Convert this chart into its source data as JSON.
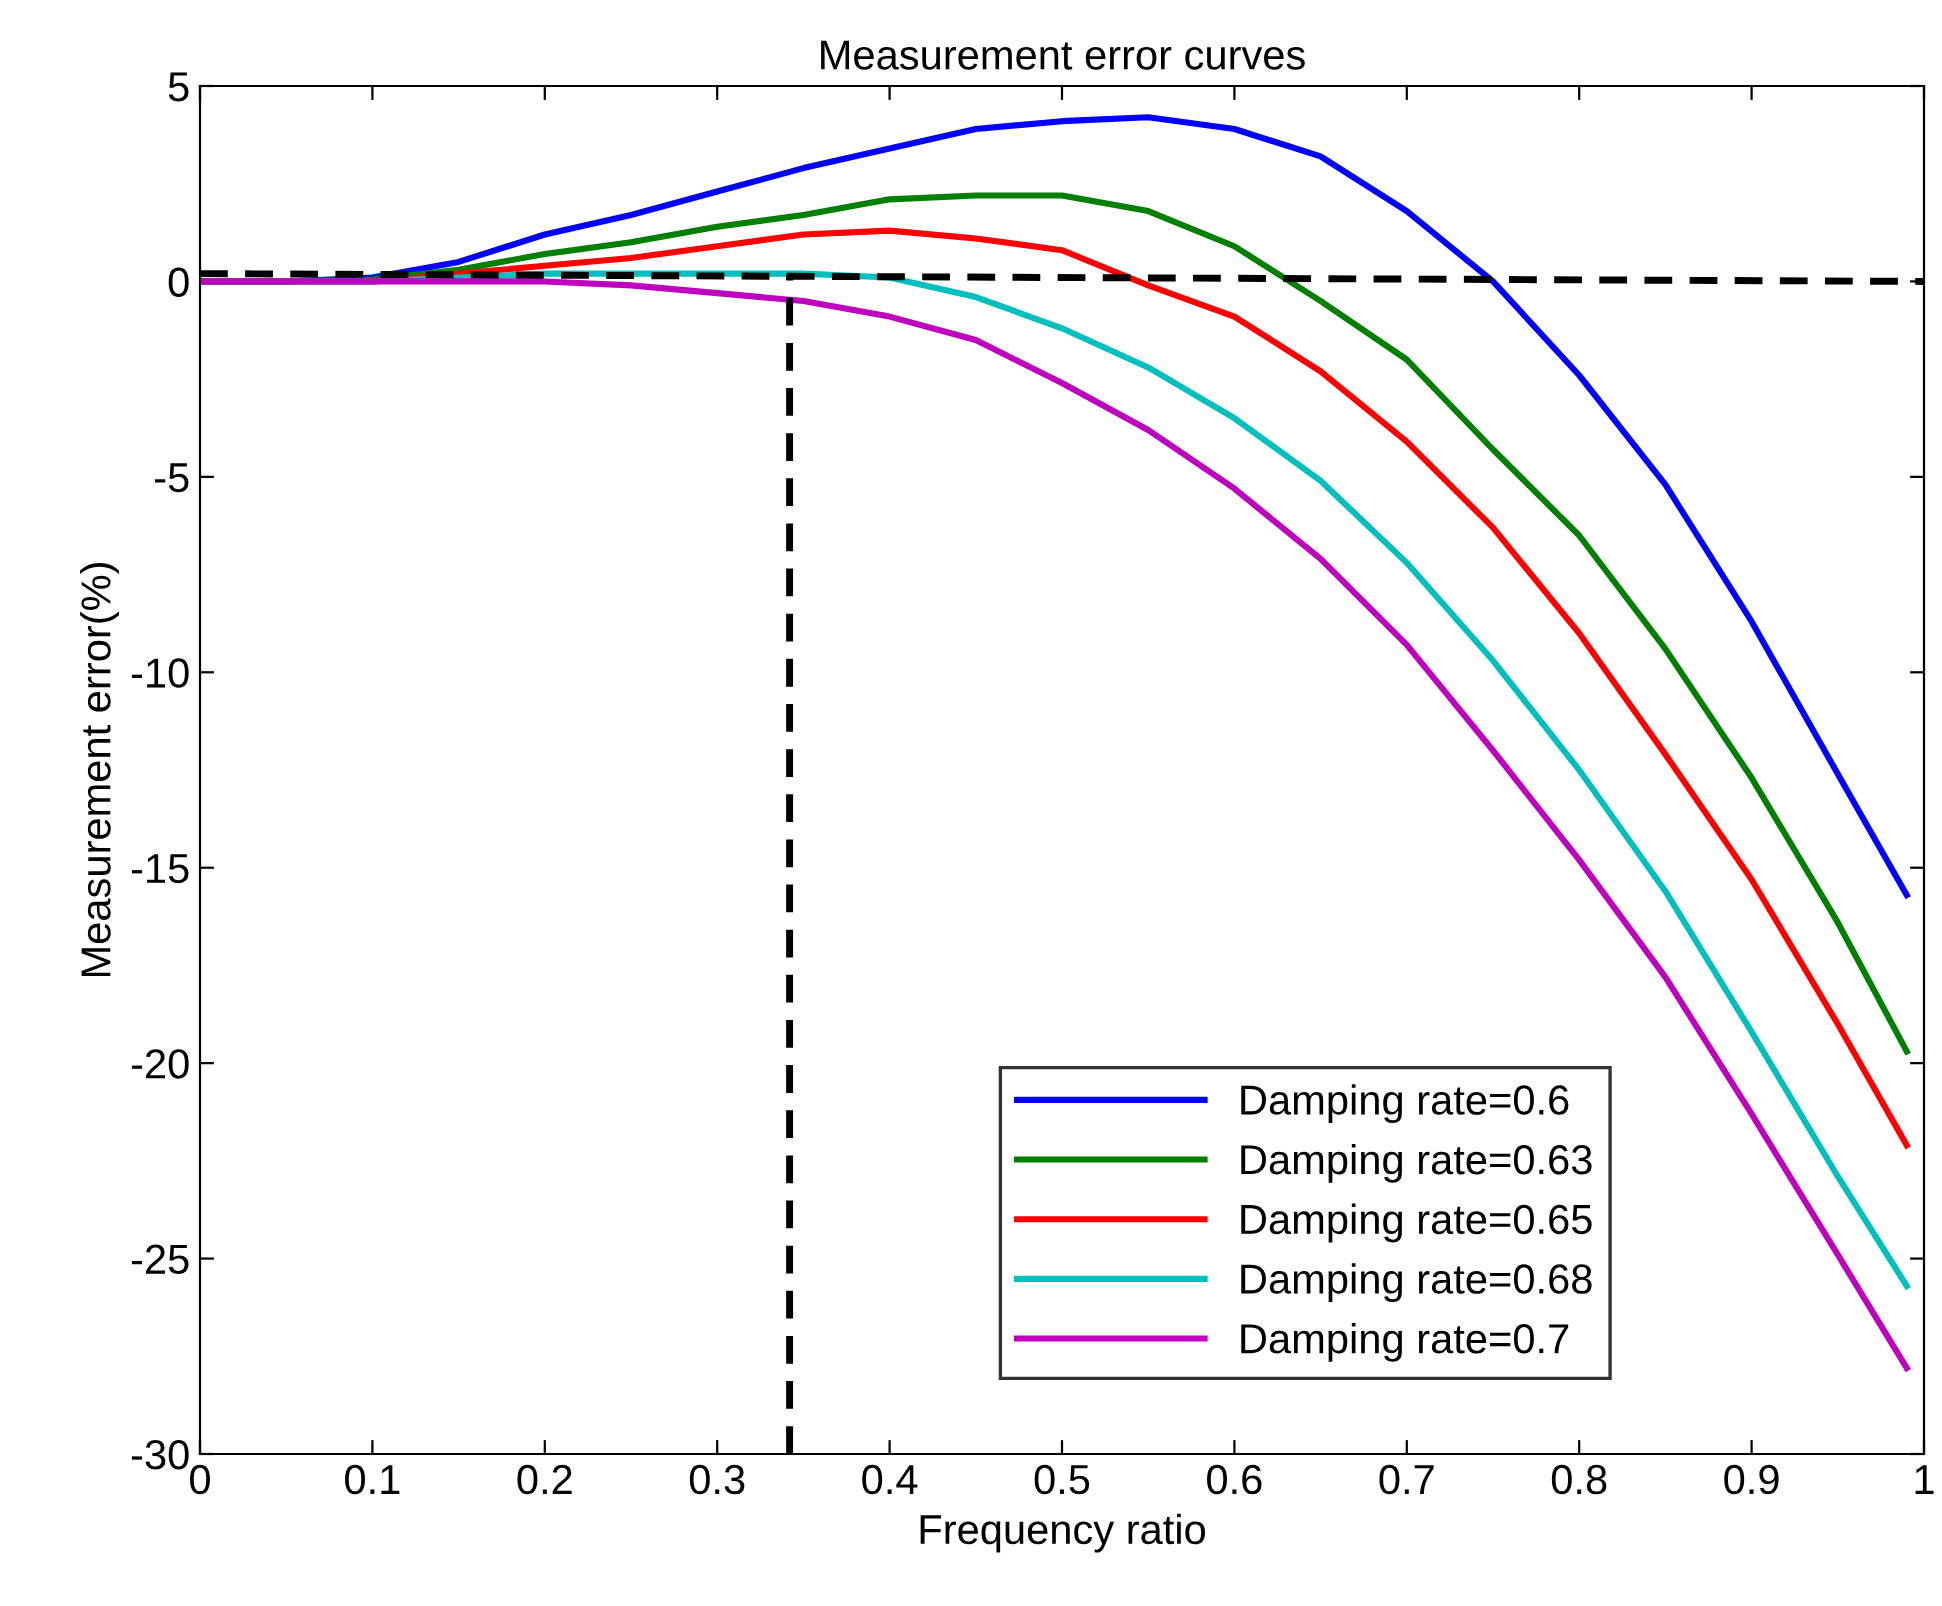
{
  "chart_data": {
    "type": "line",
    "title": "Measurement error curves",
    "xlabel": "Frequency ratio",
    "ylabel": "Measurement error(%)",
    "x": [
      0,
      0.05,
      0.1,
      0.15,
      0.2,
      0.25,
      0.3,
      0.35,
      0.4,
      0.45,
      0.5,
      0.55,
      0.6,
      0.65,
      0.7,
      0.75,
      0.8,
      0.85,
      0.9,
      0.95,
      0.99
    ],
    "series": [
      {
        "name": "Damping rate=0.6",
        "color": "#0000ff",
        "values": [
          0,
          0,
          0.1,
          0.5,
          1.2,
          1.7,
          2.3,
          2.9,
          3.4,
          3.9,
          4.1,
          4.2,
          3.9,
          3.2,
          1.8,
          0.0,
          -2.4,
          -5.2,
          -8.7,
          -12.6,
          -15.7
        ]
      },
      {
        "name": "Damping rate=0.63",
        "color": "#008000",
        "values": [
          0,
          0,
          0.05,
          0.3,
          0.7,
          1.0,
          1.4,
          1.7,
          2.1,
          2.2,
          2.2,
          1.8,
          0.9,
          -0.5,
          -2.0,
          -4.3,
          -6.5,
          -9.4,
          -12.7,
          -16.4,
          -19.7
        ]
      },
      {
        "name": "Damping rate=0.65",
        "color": "#ff0000",
        "values": [
          0,
          0,
          0,
          0.2,
          0.4,
          0.6,
          0.9,
          1.2,
          1.3,
          1.1,
          0.8,
          -0.1,
          -0.9,
          -2.3,
          -4.1,
          -6.3,
          -9.0,
          -12.1,
          -15.3,
          -19.0,
          -22.1
        ]
      },
      {
        "name": "Damping rate=0.68",
        "color": "#00bfbf",
        "values": [
          0,
          0,
          0,
          0.1,
          0.2,
          0.2,
          0.2,
          0.2,
          0.1,
          -0.4,
          -1.2,
          -2.2,
          -3.5,
          -5.1,
          -7.2,
          -9.7,
          -12.5,
          -15.6,
          -19.2,
          -22.9,
          -25.7
        ]
      },
      {
        "name": "Damping rate=0.7",
        "color": "#bf00bf",
        "values": [
          0,
          0,
          0,
          0,
          0,
          -0.1,
          -0.3,
          -0.5,
          -0.9,
          -1.5,
          -2.6,
          -3.8,
          -5.3,
          -7.1,
          -9.3,
          -12.0,
          -14.8,
          -17.8,
          -21.3,
          -24.9,
          -27.8
        ]
      },
      {
        "color": "#000000",
        "line_style": "dashed",
        "x": [
          0,
          1
        ],
        "values": [
          0.2,
          0
        ]
      },
      {
        "color": "#000000",
        "line_style": "dashed",
        "x": [
          0.342,
          0.342
        ],
        "values": [
          -30,
          0.2
        ]
      }
    ],
    "xlim": [
      0,
      1
    ],
    "ylim": [
      -30,
      5
    ],
    "xticks": [
      0,
      0.1,
      0.2,
      0.3,
      0.4,
      0.5,
      0.6,
      0.7,
      0.8,
      0.9,
      1
    ],
    "yticks": [
      5,
      0,
      -5,
      -10,
      -15,
      -20,
      -25,
      -30
    ],
    "legend": "bottom right",
    "grid": false,
    "marker": "none",
    "line_style": "solid"
  }
}
